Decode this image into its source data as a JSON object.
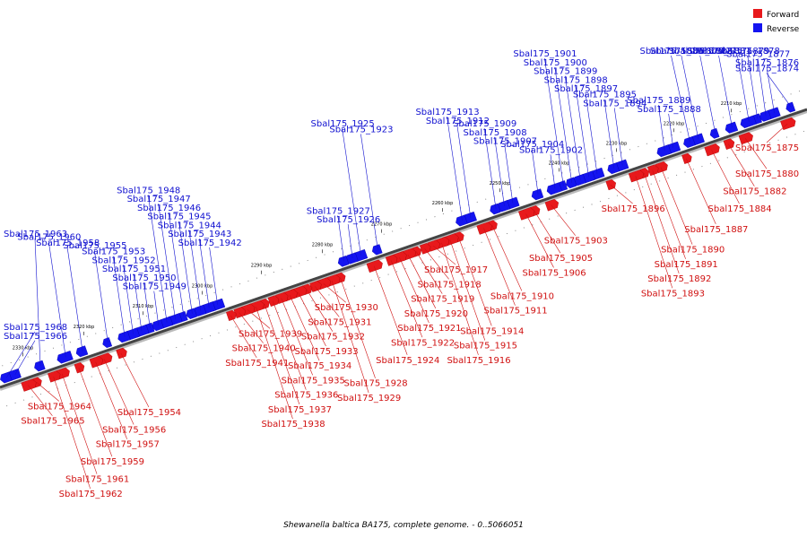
{
  "colors": {
    "forward": "#e8191c",
    "reverse": "#1414f0",
    "backbone": "#444444",
    "forward_label": "#d01010",
    "reverse_label": "#1010d0"
  },
  "legend": {
    "forward": "Forward",
    "reverse": "Reverse"
  },
  "caption": "Shewanella baltica BA175, complete genome. - 0..5066051",
  "ticks": [
    "2210 kbp",
    "2220 kbp",
    "2230 kbp",
    "2240 kbp",
    "2250 kbp",
    "2260 kbp",
    "2270 kbp",
    "2280 kbp",
    "2290 kbp",
    "2300 kbp",
    "2310 kbp",
    "2320 kbp",
    "2330 kbp"
  ],
  "genes": [
    {
      "id": "Sbal175_1874",
      "strand": "reverse"
    },
    {
      "id": "Sbal175_1875",
      "strand": "forward"
    },
    {
      "id": "Sbal175_1876",
      "strand": "reverse"
    },
    {
      "id": "Sbal175_1877",
      "strand": "reverse"
    },
    {
      "id": "Sbal175_1878",
      "strand": "reverse"
    },
    {
      "id": "Sbal175_1879",
      "strand": "reverse"
    },
    {
      "id": "Sbal175_1880",
      "strand": "forward"
    },
    {
      "id": "Sbal175_1881",
      "strand": "reverse"
    },
    {
      "id": "Sbal175_1882",
      "strand": "forward"
    },
    {
      "id": "Sbal175_1883",
      "strand": "reverse"
    },
    {
      "id": "Sbal175_1884",
      "strand": "forward"
    },
    {
      "id": "Sbal175_1885",
      "strand": "reverse"
    },
    {
      "id": "Sbal175_1886",
      "strand": "reverse"
    },
    {
      "id": "Sbal175_1887",
      "strand": "forward"
    },
    {
      "id": "Sbal175_1888",
      "strand": "reverse"
    },
    {
      "id": "Sbal175_1889",
      "strand": "reverse"
    },
    {
      "id": "Sbal175_1890",
      "strand": "forward"
    },
    {
      "id": "Sbal175_1891",
      "strand": "forward"
    },
    {
      "id": "Sbal175_1892",
      "strand": "forward"
    },
    {
      "id": "Sbal175_1893",
      "strand": "forward"
    },
    {
      "id": "Sbal175_1894",
      "strand": "reverse"
    },
    {
      "id": "Sbal175_1895",
      "strand": "reverse"
    },
    {
      "id": "Sbal175_1896",
      "strand": "forward"
    },
    {
      "id": "Sbal175_1897",
      "strand": "reverse"
    },
    {
      "id": "Sbal175_1898",
      "strand": "reverse"
    },
    {
      "id": "Sbal175_1899",
      "strand": "reverse"
    },
    {
      "id": "Sbal175_1900",
      "strand": "reverse"
    },
    {
      "id": "Sbal175_1901",
      "strand": "reverse"
    },
    {
      "id": "Sbal175_1902",
      "strand": "reverse"
    },
    {
      "id": "Sbal175_1903",
      "strand": "forward"
    },
    {
      "id": "Sbal175_1904",
      "strand": "reverse"
    },
    {
      "id": "Sbal175_1905",
      "strand": "forward"
    },
    {
      "id": "Sbal175_1906",
      "strand": "forward"
    },
    {
      "id": "Sbal175_1907",
      "strand": "reverse"
    },
    {
      "id": "Sbal175_1908",
      "strand": "reverse"
    },
    {
      "id": "Sbal175_1909",
      "strand": "reverse"
    },
    {
      "id": "Sbal175_1910",
      "strand": "forward"
    },
    {
      "id": "Sbal175_1911",
      "strand": "forward"
    },
    {
      "id": "Sbal175_1912",
      "strand": "reverse"
    },
    {
      "id": "Sbal175_1913",
      "strand": "reverse"
    },
    {
      "id": "Sbal175_1914",
      "strand": "forward"
    },
    {
      "id": "Sbal175_1915",
      "strand": "forward"
    },
    {
      "id": "Sbal175_1916",
      "strand": "forward"
    },
    {
      "id": "Sbal175_1917",
      "strand": "forward"
    },
    {
      "id": "Sbal175_1918",
      "strand": "forward"
    },
    {
      "id": "Sbal175_1919",
      "strand": "forward"
    },
    {
      "id": "Sbal175_1920",
      "strand": "forward"
    },
    {
      "id": "Sbal175_1921",
      "strand": "forward"
    },
    {
      "id": "Sbal175_1922",
      "strand": "forward"
    },
    {
      "id": "Sbal175_1923",
      "strand": "reverse"
    },
    {
      "id": "Sbal175_1924",
      "strand": "forward"
    },
    {
      "id": "Sbal175_1925",
      "strand": "reverse"
    },
    {
      "id": "Sbal175_1926",
      "strand": "reverse"
    },
    {
      "id": "Sbal175_1927",
      "strand": "reverse"
    },
    {
      "id": "Sbal175_1928",
      "strand": "forward"
    },
    {
      "id": "Sbal175_1929",
      "strand": "forward"
    },
    {
      "id": "Sbal175_1930",
      "strand": "forward"
    },
    {
      "id": "Sbal175_1931",
      "strand": "forward"
    },
    {
      "id": "Sbal175_1932",
      "strand": "forward"
    },
    {
      "id": "Sbal175_1933",
      "strand": "forward"
    },
    {
      "id": "Sbal175_1934",
      "strand": "forward"
    },
    {
      "id": "Sbal175_1935",
      "strand": "forward"
    },
    {
      "id": "Sbal175_1936",
      "strand": "forward"
    },
    {
      "id": "Sbal175_1937",
      "strand": "forward"
    },
    {
      "id": "Sbal175_1938",
      "strand": "forward"
    },
    {
      "id": "Sbal175_1939",
      "strand": "forward"
    },
    {
      "id": "Sbal175_1940",
      "strand": "forward"
    },
    {
      "id": "Sbal175_1941",
      "strand": "forward"
    },
    {
      "id": "Sbal175_1942",
      "strand": "reverse"
    },
    {
      "id": "Sbal175_1943",
      "strand": "reverse"
    },
    {
      "id": "Sbal175_1944",
      "strand": "reverse"
    },
    {
      "id": "Sbal175_1945",
      "strand": "reverse"
    },
    {
      "id": "Sbal175_1946",
      "strand": "reverse"
    },
    {
      "id": "Sbal175_1947",
      "strand": "reverse"
    },
    {
      "id": "Sbal175_1948",
      "strand": "reverse"
    },
    {
      "id": "Sbal175_1949",
      "strand": "reverse"
    },
    {
      "id": "Sbal175_1950",
      "strand": "reverse"
    },
    {
      "id": "Sbal175_1951",
      "strand": "reverse"
    },
    {
      "id": "Sbal175_1952",
      "strand": "reverse"
    },
    {
      "id": "Sbal175_1953",
      "strand": "reverse"
    },
    {
      "id": "Sbal175_1954",
      "strand": "forward"
    },
    {
      "id": "Sbal175_1955",
      "strand": "reverse"
    },
    {
      "id": "Sbal175_1956",
      "strand": "forward"
    },
    {
      "id": "Sbal175_1957",
      "strand": "forward"
    },
    {
      "id": "Sbal175_1958",
      "strand": "reverse"
    },
    {
      "id": "Sbal175_1959",
      "strand": "forward"
    },
    {
      "id": "Sbal175_1960",
      "strand": "reverse"
    },
    {
      "id": "Sbal175_1961",
      "strand": "forward"
    },
    {
      "id": "Sbal175_1962",
      "strand": "forward"
    },
    {
      "id": "Sbal175_1963",
      "strand": "reverse"
    },
    {
      "id": "Sbal175_1964",
      "strand": "forward"
    },
    {
      "id": "Sbal175_1965",
      "strand": "forward"
    },
    {
      "id": "Sbal175_1966",
      "strand": "reverse"
    },
    {
      "id": "Sbal175_1968",
      "strand": "reverse"
    }
  ]
}
